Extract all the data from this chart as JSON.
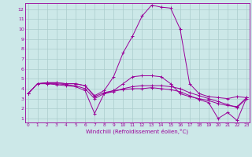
{
  "xlabel": "Windchill (Refroidissement éolien,°C)",
  "bg_color": "#cce8e8",
  "grid_color": "#aacccc",
  "line_color": "#990099",
  "x_ticks": [
    0,
    1,
    2,
    3,
    4,
    5,
    6,
    7,
    8,
    9,
    10,
    11,
    12,
    13,
    14,
    15,
    16,
    17,
    18,
    19,
    20,
    21,
    22,
    23
  ],
  "y_ticks": [
    1,
    2,
    3,
    4,
    5,
    6,
    7,
    8,
    9,
    10,
    11,
    12
  ],
  "ylim": [
    0.6,
    12.6
  ],
  "xlim": [
    -0.3,
    23.3
  ],
  "curves": [
    [
      3.5,
      4.5,
      4.6,
      4.6,
      4.5,
      4.5,
      4.3,
      3.3,
      3.8,
      5.2,
      7.6,
      9.3,
      11.3,
      12.4,
      12.2,
      12.1,
      10.0,
      4.5,
      3.5,
      3.2,
      3.1,
      3.0,
      3.2,
      3.1
    ],
    [
      3.5,
      4.5,
      4.6,
      4.6,
      4.5,
      4.5,
      4.3,
      3.2,
      3.6,
      3.8,
      4.5,
      5.2,
      5.3,
      5.3,
      5.2,
      4.5,
      3.5,
      3.2,
      3.0,
      2.8,
      2.5,
      2.3,
      2.2,
      3.1
    ],
    [
      3.5,
      4.5,
      4.5,
      4.5,
      4.4,
      4.3,
      4.0,
      3.0,
      3.5,
      3.7,
      4.0,
      4.2,
      4.3,
      4.3,
      4.3,
      4.2,
      4.0,
      3.6,
      3.3,
      3.0,
      2.7,
      2.4,
      2.1,
      3.0
    ],
    [
      3.5,
      4.5,
      4.5,
      4.4,
      4.3,
      4.2,
      3.8,
      1.5,
      3.5,
      3.8,
      3.9,
      4.0,
      4.0,
      4.1,
      4.0,
      3.9,
      3.7,
      3.3,
      2.9,
      2.6,
      1.0,
      1.6,
      0.8,
      3.1
    ]
  ]
}
